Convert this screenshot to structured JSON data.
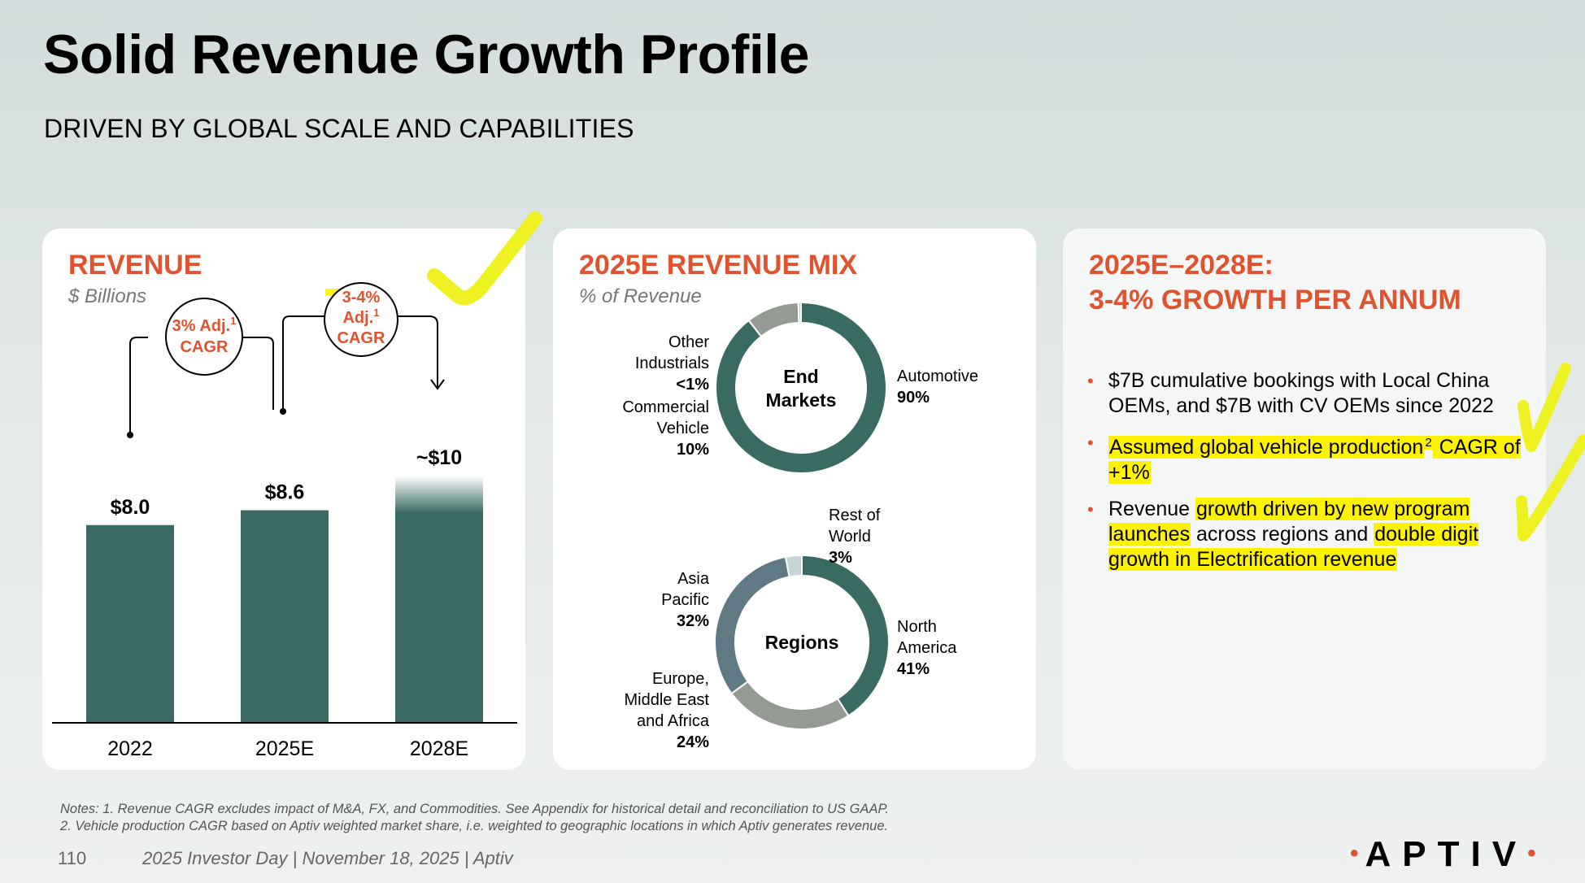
{
  "page": {
    "title": "Solid Revenue Growth Profile",
    "subtitle": "DRIVEN BY GLOBAL SCALE AND CAPABILITIES"
  },
  "revenue_panel": {
    "heading": "REVENUE",
    "subheading": "$ Billions",
    "cagr_left": {
      "line1": "3% Adj.",
      "sup": "1",
      "line2": "CAGR"
    },
    "cagr_right": {
      "line1": "3-4%",
      "line2": "Adj.",
      "sup": "1",
      "line3": "CAGR"
    }
  },
  "mix_panel": {
    "heading": "2025E REVENUE MIX",
    "subheading": "% of Revenue"
  },
  "growth_panel": {
    "heading_line1": "2025E–2028E:",
    "heading_line2": "3-4% GROWTH PER ANNUM",
    "bullets": [
      {
        "text": "$7B cumulative bookings with Local China OEMs, and $7B with CV OEMs since 2022"
      },
      {
        "a": "Assumed global vehicle production",
        "sup": "2",
        "b": " CAGR of +1%"
      },
      {
        "a": "Revenue ",
        "b": "growth driven by new program launches",
        "c": " across regions and ",
        "d": "double digit growth in Electrification revenue"
      }
    ]
  },
  "chart_data": [
    {
      "type": "bar",
      "title": "REVENUE",
      "ylabel": "$ Billions",
      "categories": [
        "2022",
        "2025E",
        "2028E"
      ],
      "values": [
        8.0,
        8.6,
        10.0
      ],
      "labels": [
        "$8.0",
        "$8.6",
        "~$10"
      ],
      "ylim": [
        0,
        11
      ],
      "annotations": [
        {
          "from": "2022",
          "to": "2025E",
          "text": "3% Adj.1 CAGR"
        },
        {
          "from": "2025E",
          "to": "2028E",
          "text": "3-4% Adj.1 CAGR"
        }
      ]
    },
    {
      "type": "pie",
      "title": "End Markets",
      "center_label": [
        "End",
        "Markets"
      ],
      "segments": [
        {
          "name": [
            "Automotive"
          ],
          "label": "90%",
          "value": 89.5,
          "color": "#396b63"
        },
        {
          "name": [
            "Commercial",
            "Vehicle"
          ],
          "label": "10%",
          "value": 10,
          "color": "#959a94"
        },
        {
          "name": [
            "Other",
            "Industrials"
          ],
          "label": "<1%",
          "value": 0.5,
          "color": "#b8c7cc"
        }
      ]
    },
    {
      "type": "pie",
      "title": "Regions",
      "center_label": [
        "Regions"
      ],
      "segments": [
        {
          "name": [
            "North",
            "America"
          ],
          "label": "41%",
          "value": 41,
          "color": "#396b63"
        },
        {
          "name": [
            "Europe,",
            "Middle East",
            "and Africa"
          ],
          "label": "24%",
          "value": 24,
          "color": "#969a95"
        },
        {
          "name": [
            "Asia",
            "Pacific"
          ],
          "label": "32%",
          "value": 32,
          "color": "#5f7a85"
        },
        {
          "name": [
            "Rest of",
            "World"
          ],
          "label": "3%",
          "value": 3,
          "color": "#c5d4d7"
        }
      ]
    }
  ],
  "notes": {
    "line1": "Notes: 1. Revenue CAGR excludes impact of M&A, FX, and Commodities. See Appendix for historical detail and reconciliation to US GAAP.",
    "line2": "2. Vehicle production CAGR based on Aptiv weighted market share, i.e. weighted to geographic locations in which Aptiv generates revenue."
  },
  "footer": {
    "page_number": "110",
    "event": "2025 Investor Day | November 18, 2025 | Aptiv",
    "logo": "APTIV"
  },
  "colors": {
    "accent": "#e0532e",
    "bar": "#396b63",
    "highlight": "#fff200"
  }
}
